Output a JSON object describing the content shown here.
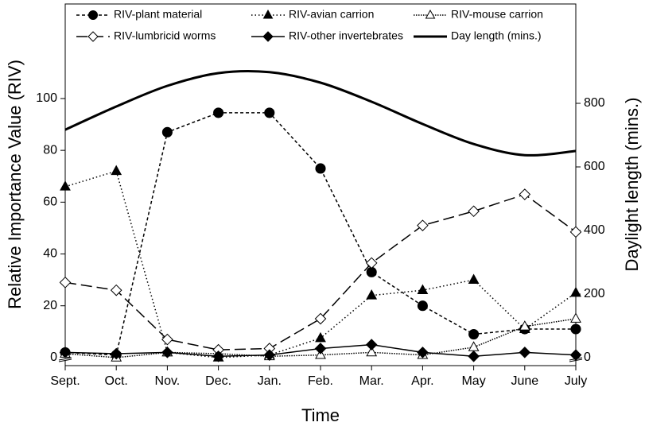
{
  "chart_data": {
    "type": "line",
    "x_label": "Time",
    "y_label": "Relative Importance Value (RIV)",
    "y2_label": "Daylight length (mins.)",
    "categories": [
      "Sept.",
      "Oct.",
      "Nov.",
      "Dec.",
      "Jan.",
      "Feb.",
      "Mar.",
      "Apr.",
      "May",
      "June",
      "July"
    ],
    "ylim": [
      -3.1,
      136.5
    ],
    "yticks": [
      0,
      20,
      40,
      60,
      80,
      100
    ],
    "y2lim": [
      -25,
      1112.5
    ],
    "y2ticks": [
      0,
      200,
      400,
      600,
      800
    ],
    "series": [
      {
        "name": "RIV-plant material",
        "color": "#000000",
        "marker": "circle",
        "dash": "4,3",
        "values": [
          2,
          1,
          87,
          94.5,
          94.5,
          73,
          33,
          20,
          9,
          11,
          11
        ]
      },
      {
        "name": "RIV-avian carrion",
        "color": "#000000",
        "marker": "triangle",
        "dash": "1.5,3",
        "values": [
          66,
          72,
          2,
          0,
          1,
          7.5,
          24,
          26,
          30,
          11,
          25
        ]
      },
      {
        "name": "RIV-mouse carrion",
        "color": "#000000",
        "marker": "triangle-open",
        "dash": "1.5,1.5",
        "values": [
          1.5,
          0,
          2,
          1.5,
          0.5,
          1,
          2,
          1,
          4,
          12,
          15
        ]
      },
      {
        "name": "RIV-lumbricid worms",
        "color": "#000000",
        "marker": "diamond-open",
        "dash": "14,6",
        "values": [
          29,
          26,
          7,
          3,
          3.5,
          15,
          36.5,
          51,
          56.5,
          63,
          48.5
        ]
      },
      {
        "name": "RIV-other invertebrates",
        "color": "#000000",
        "marker": "diamond",
        "dash": "none",
        "values": [
          2,
          1.5,
          2,
          0.5,
          1,
          3.5,
          5,
          2,
          0.5,
          2,
          1
        ]
      },
      {
        "name": "Day length (mins.)",
        "color": "#000000",
        "marker": "none",
        "dash": "none",
        "axis": "y2",
        "values": [
          717,
          790,
          855,
          895,
          898,
          865,
          805,
          735,
          672,
          637,
          650
        ]
      }
    ]
  }
}
